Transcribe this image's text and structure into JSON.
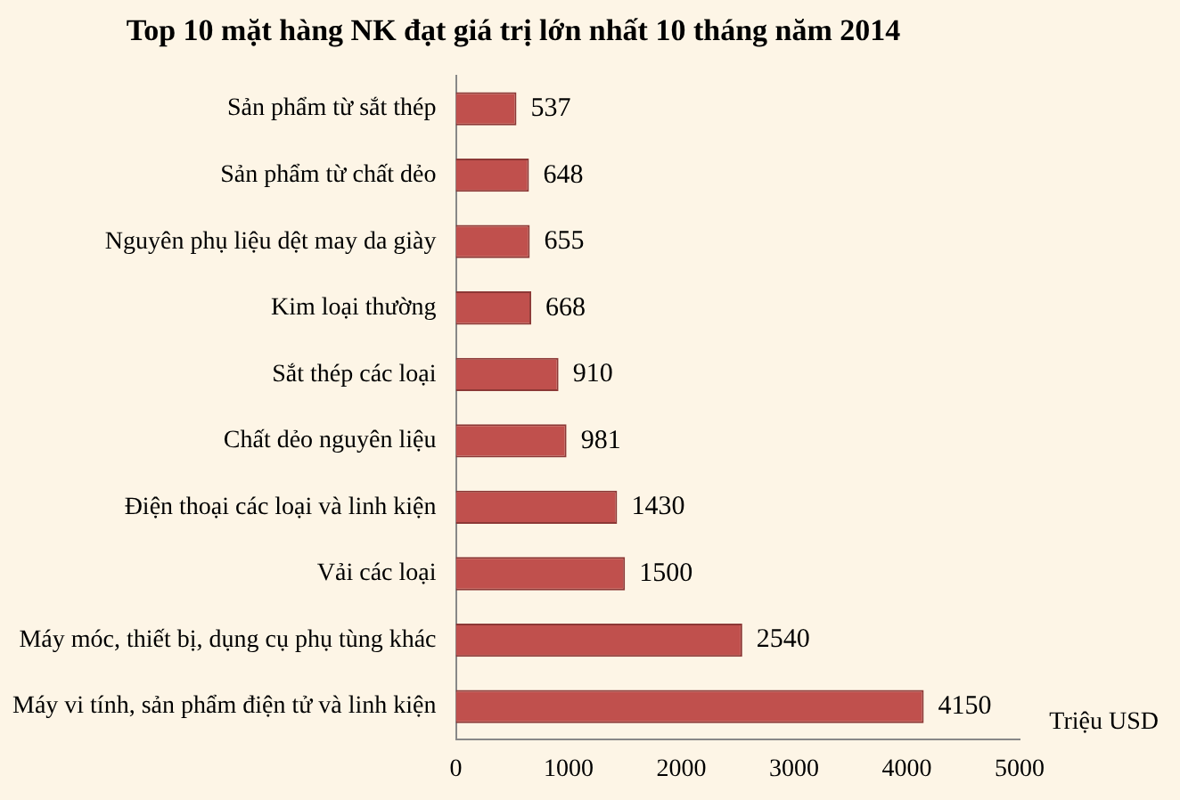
{
  "chart_data": {
    "type": "bar",
    "orientation": "horizontal",
    "title": "Top 10 mặt hàng NK đạt giá trị lớn nhất 10 tháng năm 2014",
    "xlabel": "Triệu USD",
    "categories": [
      "Sản phẩm từ sắt thép",
      "Sản phẩm từ chất dẻo",
      "Nguyên phụ liệu dệt may da giày",
      "Kim loại thường",
      "Sắt thép các loại",
      "Chất dẻo nguyên liệu",
      "Điện thoại các loại và linh kiện",
      "Vải các loại",
      "Máy móc, thiết bị, dụng cụ phụ tùng khác",
      "Máy vi tính, sản phẩm điện tử và linh kiện"
    ],
    "values": [
      537,
      648,
      655,
      668,
      910,
      981,
      1430,
      1500,
      2540,
      4150
    ],
    "color": "#c0504d",
    "xlim": [
      0,
      5000
    ],
    "xticks": [
      0,
      1000,
      2000,
      3000,
      4000,
      5000
    ],
    "grid": false,
    "legend": false,
    "data_labels": true
  }
}
